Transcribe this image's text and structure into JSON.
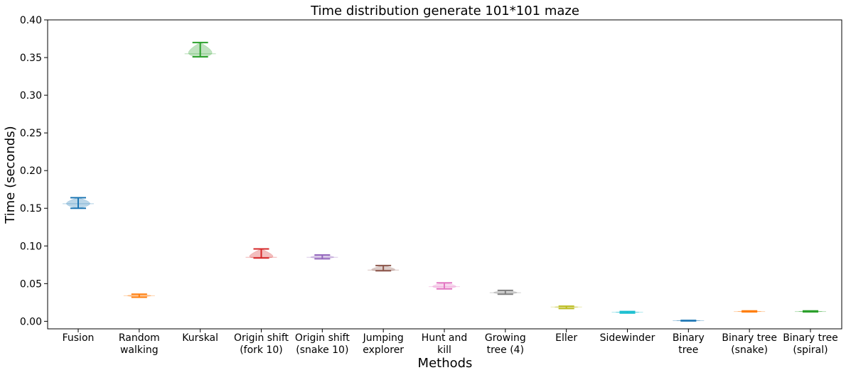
{
  "chart_data": {
    "type": "violin",
    "title": "Time distribution generate 101*101 maze",
    "xlabel": "Methods",
    "ylabel": "Time (seconds)",
    "ylim": [
      -0.01,
      0.4
    ],
    "yticks": [
      "0.00",
      "0.05",
      "0.10",
      "0.15",
      "0.20",
      "0.25",
      "0.30",
      "0.35",
      "0.40"
    ],
    "grid": false,
    "series": [
      {
        "label_lines": [
          "Fusion"
        ],
        "min": 0.15,
        "max": 0.164,
        "mean": 0.156,
        "color": "#1f77b4"
      },
      {
        "label_lines": [
          "Random",
          "walking"
        ],
        "min": 0.032,
        "max": 0.036,
        "mean": 0.034,
        "color": "#ff7f0e"
      },
      {
        "label_lines": [
          "Kurskal"
        ],
        "min": 0.351,
        "max": 0.37,
        "mean": 0.355,
        "color": "#2ca02c"
      },
      {
        "label_lines": [
          "Origin shift",
          "(fork 10)"
        ],
        "min": 0.084,
        "max": 0.096,
        "mean": 0.085,
        "color": "#d62728"
      },
      {
        "label_lines": [
          "Origin shift",
          "(snake 10)"
        ],
        "min": 0.083,
        "max": 0.088,
        "mean": 0.085,
        "color": "#9467bd"
      },
      {
        "label_lines": [
          "Jumping",
          "explorer"
        ],
        "min": 0.067,
        "max": 0.074,
        "mean": 0.068,
        "color": "#8c564b"
      },
      {
        "label_lines": [
          "Hunt and",
          "kill"
        ],
        "min": 0.043,
        "max": 0.051,
        "mean": 0.046,
        "color": "#e377c2"
      },
      {
        "label_lines": [
          "Growing",
          "tree (4)"
        ],
        "min": 0.036,
        "max": 0.041,
        "mean": 0.038,
        "color": "#7f7f7f"
      },
      {
        "label_lines": [
          "Eller"
        ],
        "min": 0.017,
        "max": 0.02,
        "mean": 0.019,
        "color": "#bcbd22"
      },
      {
        "label_lines": [
          "Sidewinder"
        ],
        "min": 0.011,
        "max": 0.013,
        "mean": 0.012,
        "color": "#17becf"
      },
      {
        "label_lines": [
          "Binary",
          "tree"
        ],
        "min": 0.0005,
        "max": 0.0012,
        "mean": 0.0008,
        "color": "#1f77b4"
      },
      {
        "label_lines": [
          "Binary tree",
          "(snake)"
        ],
        "min": 0.0125,
        "max": 0.0138,
        "mean": 0.013,
        "color": "#ff7f0e"
      },
      {
        "label_lines": [
          "Binary tree",
          "(spiral)"
        ],
        "min": 0.0125,
        "max": 0.0138,
        "mean": 0.013,
        "color": "#2ca02c"
      }
    ]
  }
}
